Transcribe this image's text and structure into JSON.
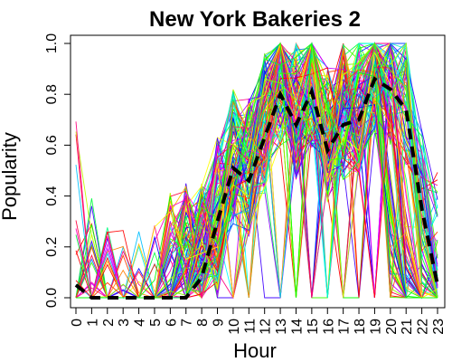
{
  "chart_data": {
    "type": "line",
    "title": "New York Bakeries 2",
    "xlabel": "Hour",
    "ylabel": "Popularity",
    "x": [
      0,
      1,
      2,
      3,
      4,
      5,
      6,
      7,
      8,
      9,
      10,
      11,
      12,
      13,
      14,
      15,
      16,
      17,
      18,
      19,
      20,
      21,
      22,
      23
    ],
    "x_tick_labels": [
      "0",
      "1",
      "2",
      "3",
      "4",
      "5",
      "6",
      "7",
      "8",
      "9",
      "10",
      "11",
      "12",
      "13",
      "14",
      "15",
      "16",
      "17",
      "18",
      "19",
      "20",
      "21",
      "22",
      "23"
    ],
    "y_tick_labels": [
      "0.0",
      "0.2",
      "0.4",
      "0.6",
      "0.8",
      "1.0"
    ],
    "y_ticks": [
      0.0,
      0.2,
      0.4,
      0.6,
      0.8,
      1.0
    ],
    "xlim": [
      0,
      23
    ],
    "ylim": [
      0,
      1.0
    ],
    "grid": false,
    "mean_series": {
      "style": "black dashed thick",
      "values": [
        0.05,
        0.0,
        0.0,
        0.0,
        0.0,
        0.0,
        0.0,
        0.0,
        0.08,
        0.3,
        0.51,
        0.46,
        0.63,
        0.8,
        0.68,
        0.81,
        0.58,
        0.68,
        0.7,
        0.86,
        0.82,
        0.74,
        0.35,
        0.05
      ]
    },
    "individual_series_count": 130,
    "individual_series_colors": [
      "#FF0000",
      "#FF4000",
      "#FF8000",
      "#FFBF00",
      "#FFFF00",
      "#BFFF00",
      "#80FF00",
      "#40FF00",
      "#00FF00",
      "#00FF40",
      "#00FF80",
      "#00FFBF",
      "#00FFFF",
      "#00BFFF",
      "#0080FF",
      "#0040FF",
      "#0000FF",
      "#4000FF",
      "#8000FF",
      "#BF00FF",
      "#FF00FF",
      "#FF00BF",
      "#FF0080",
      "#FF0040"
    ]
  }
}
